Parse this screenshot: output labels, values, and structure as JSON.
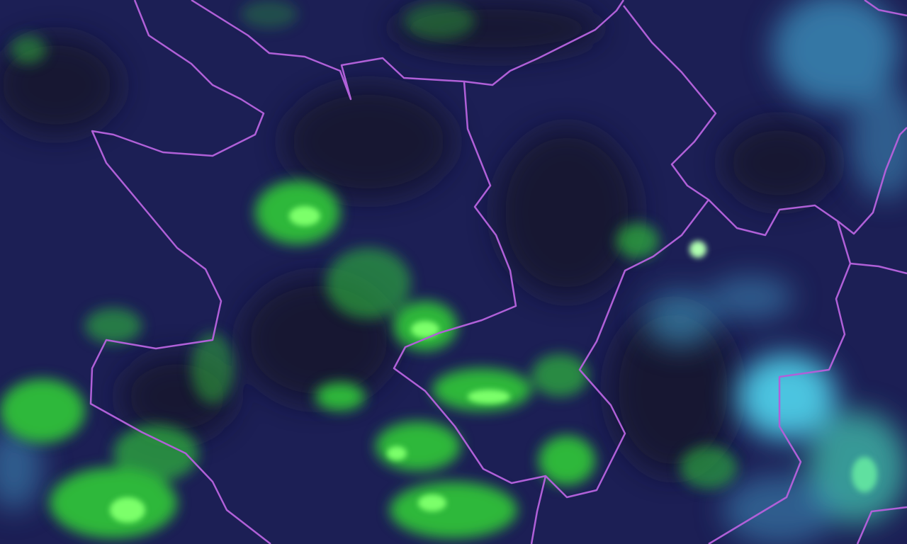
{
  "map": {
    "type": "satellite-imagery",
    "colors": {
      "background": "#1c1f55",
      "dark_patches": "#14142a",
      "vegetation_green": "#3fdc3a",
      "cloud_cyan": "#4ab8d8",
      "border": "#b060d8"
    }
  }
}
